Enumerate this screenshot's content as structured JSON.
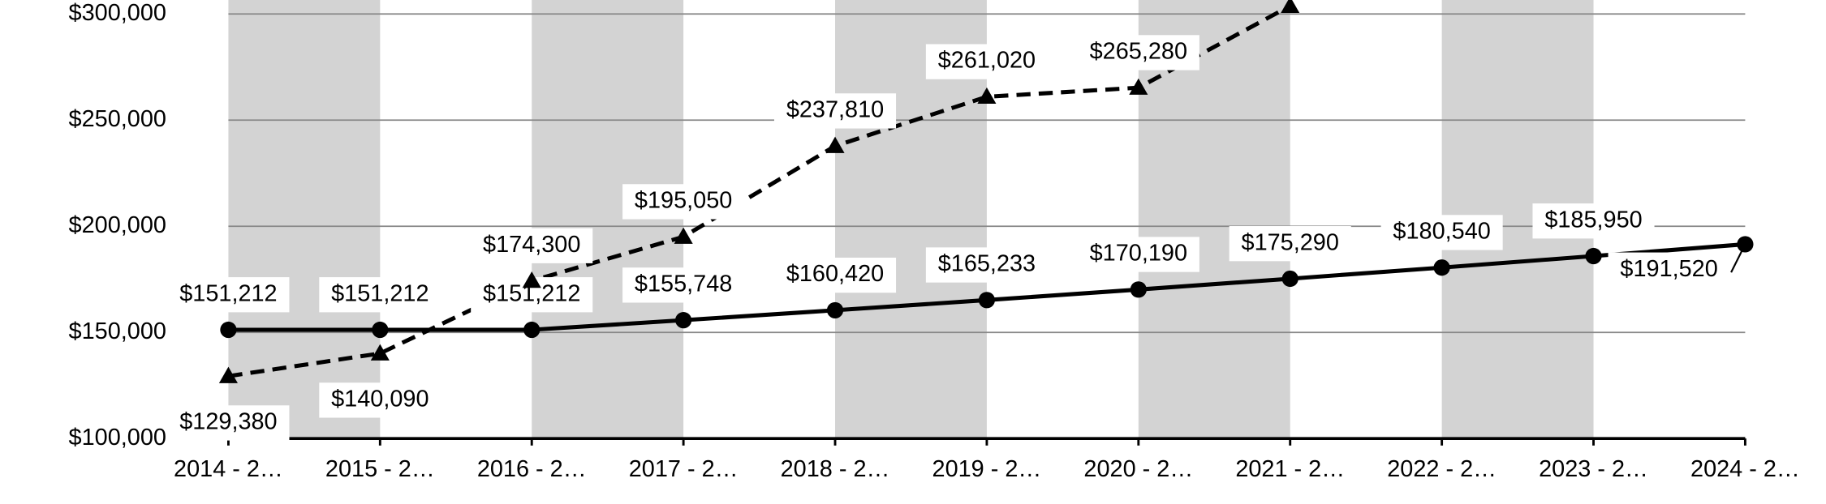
{
  "chart_data": {
    "type": "line",
    "categories": [
      "2014 - 2…",
      "2015 - 2…",
      "2016 - 2…",
      "2017 - 2…",
      "2018 - 2…",
      "2019 - 2…",
      "2020 - 2…",
      "2021 - 2…",
      "2022 - 2…",
      "2023 - 2…",
      "2024 - 2…"
    ],
    "series": [
      {
        "color": "#000000",
        "dash": false,
        "marker": "circle",
        "values": [
          151212,
          151212,
          151212,
          155748,
          160420,
          165233,
          170190,
          175290,
          180540,
          185950,
          191520
        ],
        "value_labels": [
          "$151,212",
          "$151,212",
          "$151,212",
          "$155,748",
          "$160,420",
          "$165,233",
          "$170,190",
          "$175,290",
          "$180,540",
          "$185,950",
          "$191,520"
        ]
      },
      {
        "color": "#000000",
        "dash": true,
        "marker": "triangle",
        "values": [
          129380,
          140090,
          174300,
          195050,
          237810,
          261020,
          265280,
          303800,
          null,
          null,
          null
        ],
        "value_labels": [
          "$129,380",
          "$140,090",
          "$174,300",
          "$195,050",
          "$237,810",
          "$261,020",
          "$265,280",
          null,
          null,
          null,
          null
        ]
      }
    ],
    "ylim": [
      100000,
      306600
    ],
    "yticks": [
      {
        "value": 100000,
        "label": "$100,000"
      },
      {
        "value": 150000,
        "label": "$150,000"
      },
      {
        "value": 200000,
        "label": "$200,000"
      },
      {
        "value": 250000,
        "label": "$250,000"
      },
      {
        "value": 300000,
        "label": "$300,000"
      }
    ],
    "grid": true,
    "alternating_bands": "#d3d3d3"
  }
}
